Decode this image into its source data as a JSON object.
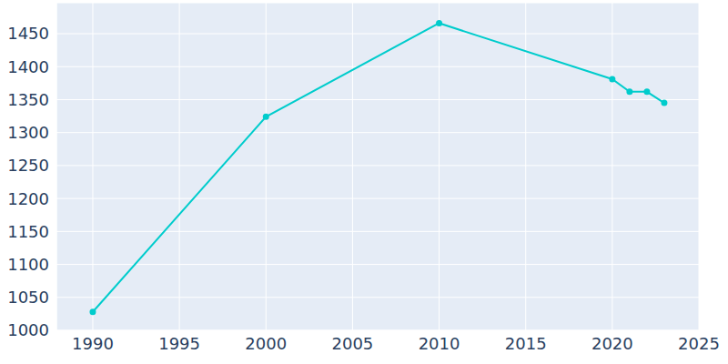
{
  "chart_data": {
    "type": "line",
    "x": [
      1990,
      2000,
      2010,
      2020,
      2021,
      2022,
      2023
    ],
    "values": [
      1028,
      1324,
      1466,
      1381,
      1362,
      1362,
      1345
    ],
    "color": "#00cccc",
    "marker": "circle",
    "xlim": [
      1987.9,
      2025
    ],
    "xticks": [
      1990,
      1995,
      2000,
      2005,
      2010,
      2015,
      2020,
      2025
    ],
    "ylim": [
      1000,
      1497
    ],
    "yticks": [
      1000,
      1050,
      1100,
      1150,
      1200,
      1250,
      1300,
      1350,
      1400,
      1450
    ],
    "grid": true
  }
}
